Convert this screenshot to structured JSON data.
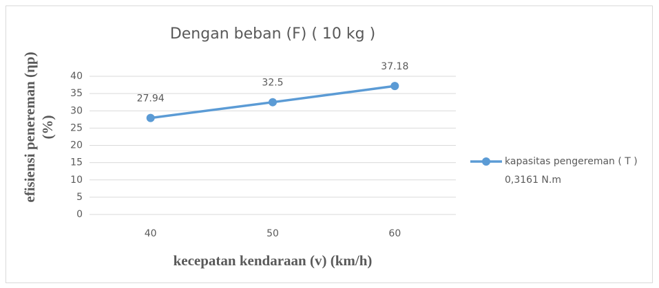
{
  "chart_data": {
    "type": "line",
    "title": "Dengan beban (F) ( 10 kg )",
    "xlabel": "kecepatan kendaraan (v) (km/h)",
    "ylabel": "efisiensi penereman (ηp)(%)",
    "categories": [
      "40",
      "50",
      "60"
    ],
    "series": [
      {
        "name": "kapasitas pengereman ( T ) 0,3161 N.m",
        "color": "#5b9bd5",
        "values": [
          27.94,
          32.5,
          37.18
        ]
      }
    ],
    "ylim": [
      0,
      40
    ],
    "yticks": [
      0,
      5,
      10,
      15,
      20,
      25,
      30,
      35,
      40
    ],
    "grid": true,
    "legend": "right",
    "data_labels": true
  }
}
